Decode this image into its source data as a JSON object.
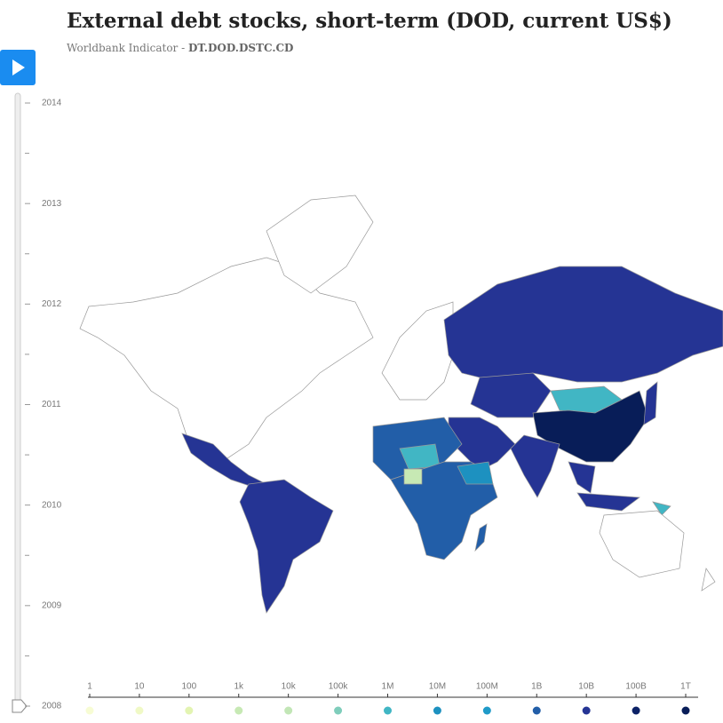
{
  "header": {
    "title": "External debt stocks, short-term (DOD, current US$)",
    "subtitle_prefix": "Worldbank Indicator -",
    "indicator_code": "DT.DOD.DSTC.CD"
  },
  "timeline": {
    "years": [
      "2014",
      "2013",
      "2012",
      "2011",
      "2010",
      "2009",
      "2008"
    ]
  },
  "legend": {
    "labels": [
      "1",
      "10",
      "100",
      "1k",
      "10k",
      "100k",
      "1M",
      "10M",
      "100M",
      "1B",
      "10B",
      "100B",
      "1T"
    ],
    "colors": [
      "#f7fcd4",
      "#f0f9c6",
      "#e3f4b2",
      "#c7e9b4",
      "#c2e6b6",
      "#7fcdbb",
      "#41b6c4",
      "#1d91c0",
      "#1f9ac8",
      "#225ea8",
      "#253494",
      "#0c2166",
      "#081d58"
    ]
  }
}
